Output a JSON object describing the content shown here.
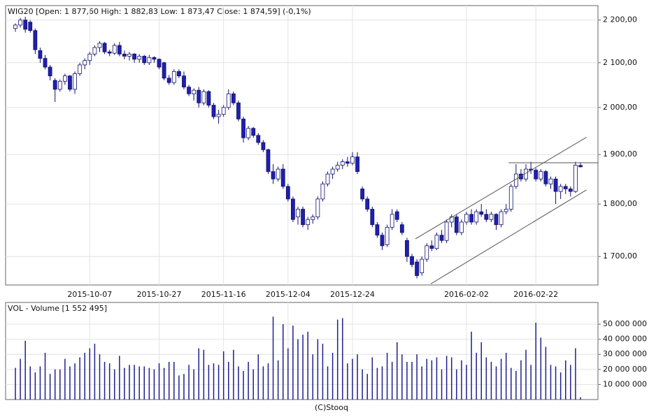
{
  "chart_data": [
    {
      "type": "candlestick",
      "title": "WIG20 [Open: 1 877,60  High: 1 882,83  Low: 1 873,47  Close: 1 874,59] (-0,1%)",
      "categories": [
        null,
        null,
        null,
        null,
        null,
        null,
        null,
        null,
        null,
        null,
        null,
        null,
        null,
        null,
        null,
        "2015-10-07",
        null,
        null,
        null,
        null,
        null,
        null,
        null,
        null,
        null,
        null,
        null,
        null,
        null,
        "2015-10-27",
        null,
        null,
        null,
        null,
        null,
        null,
        null,
        null,
        null,
        null,
        null,
        null,
        "2015-11-16",
        null,
        null,
        null,
        null,
        null,
        null,
        null,
        null,
        null,
        null,
        null,
        null,
        "2015-12-04",
        null,
        null,
        null,
        null,
        null,
        null,
        null,
        null,
        null,
        null,
        null,
        null,
        "2015-12-24",
        null,
        null,
        null,
        null,
        null,
        null,
        null,
        null,
        null,
        null,
        null,
        null,
        null,
        null,
        null,
        null,
        null,
        null,
        null,
        null,
        null,
        null,
        "2016-02-02",
        null,
        null,
        null,
        null,
        null,
        null,
        null,
        null,
        null,
        null,
        null,
        null,
        null,
        "2016-02-22",
        null,
        null,
        null,
        null,
        null,
        null,
        null,
        null,
        null
      ],
      "open": [
        2180,
        2188,
        2200,
        2195,
        2175,
        2128,
        2110,
        2090,
        2060,
        2040,
        2058,
        2070,
        2040,
        2075,
        2095,
        2105,
        2120,
        2135,
        2145,
        2125,
        2122,
        2140,
        2120,
        2115,
        2120,
        2108,
        2115,
        2100,
        2112,
        2108,
        2100,
        2065,
        2055,
        2080,
        2070,
        2045,
        2030,
        2038,
        2010,
        2035,
        2005,
        1980,
        1985,
        2000,
        2030,
        2010,
        1975,
        1935,
        1955,
        1940,
        1925,
        1910,
        1865,
        1850,
        1870,
        1835,
        1810,
        1775,
        1790,
        1760,
        1770,
        1775,
        1810,
        1840,
        1860,
        1870,
        1878,
        1885,
        1882,
        1895,
        1830,
        1810,
        1790,
        1760,
        1740,
        1722,
        1755,
        1785,
        1760,
        1730,
        1700,
        1690,
        1670,
        1695,
        1720,
        1715,
        1740,
        1730,
        1765,
        1775,
        1745,
        1765,
        1780,
        1765,
        1785,
        1780,
        1770,
        1780,
        1760,
        1785,
        1790,
        1835,
        1860,
        1850,
        1870,
        1868,
        1850,
        1865,
        1840,
        1850,
        1825,
        1835,
        1830,
        1825,
        1877.6
      ],
      "high": [
        2192,
        2205,
        2208,
        2200,
        2180,
        2135,
        2118,
        2095,
        2065,
        2062,
        2075,
        2072,
        2080,
        2100,
        2110,
        2125,
        2140,
        2150,
        2148,
        2130,
        2145,
        2148,
        2128,
        2125,
        2122,
        2120,
        2118,
        2118,
        2115,
        2110,
        2102,
        2072,
        2085,
        2085,
        2080,
        2050,
        2042,
        2045,
        2040,
        2038,
        2010,
        1995,
        2005,
        2040,
        2035,
        2015,
        1980,
        1960,
        1958,
        1945,
        1930,
        1912,
        1880,
        1875,
        1880,
        1840,
        1815,
        1795,
        1795,
        1775,
        1780,
        1815,
        1845,
        1865,
        1875,
        1885,
        1890,
        1895,
        1905,
        1905,
        1835,
        1815,
        1795,
        1765,
        1745,
        1760,
        1790,
        1790,
        1765,
        1735,
        1705,
        1695,
        1700,
        1725,
        1730,
        1745,
        1750,
        1770,
        1780,
        1780,
        1770,
        1785,
        1790,
        1790,
        1800,
        1790,
        1785,
        1782,
        1790,
        1800,
        1840,
        1880,
        1870,
        1880,
        1885,
        1872,
        1870,
        1868,
        1855,
        1855,
        1840,
        1840,
        1835,
        1885,
        1882.83
      ],
      "low": [
        2172,
        2182,
        2170,
        2170,
        2120,
        2100,
        2085,
        2060,
        2012,
        2035,
        2050,
        2035,
        2030,
        2070,
        2085,
        2095,
        2115,
        2125,
        2120,
        2115,
        2118,
        2115,
        2108,
        2105,
        2100,
        2100,
        2095,
        2095,
        2100,
        2085,
        2060,
        2050,
        2050,
        2065,
        2040,
        2025,
        2015,
        2000,
        2005,
        2000,
        1975,
        1965,
        1980,
        1995,
        2005,
        1970,
        1925,
        1930,
        1935,
        1920,
        1905,
        1860,
        1840,
        1845,
        1830,
        1805,
        1765,
        1760,
        1755,
        1750,
        1762,
        1770,
        1805,
        1835,
        1850,
        1865,
        1870,
        1875,
        1878,
        1860,
        1805,
        1785,
        1755,
        1735,
        1712,
        1718,
        1750,
        1765,
        1740,
        1690,
        1680,
        1660,
        1665,
        1690,
        1710,
        1712,
        1725,
        1725,
        1755,
        1740,
        1740,
        1760,
        1760,
        1760,
        1775,
        1765,
        1765,
        1750,
        1755,
        1780,
        1785,
        1830,
        1845,
        1845,
        1860,
        1845,
        1845,
        1835,
        1830,
        1800,
        1810,
        1820,
        1815,
        1822,
        1873.47
      ],
      "close": [
        2188,
        2200,
        2178,
        2175,
        2130,
        2110,
        2090,
        2070,
        2040,
        2058,
        2070,
        2040,
        2075,
        2095,
        2105,
        2120,
        2135,
        2145,
        2125,
        2122,
        2140,
        2120,
        2115,
        2120,
        2108,
        2115,
        2100,
        2112,
        2108,
        2090,
        2065,
        2055,
        2080,
        2070,
        2045,
        2030,
        2038,
        2010,
        2035,
        2005,
        1980,
        1985,
        2000,
        2030,
        2010,
        1975,
        1935,
        1955,
        1940,
        1925,
        1910,
        1865,
        1850,
        1870,
        1835,
        1810,
        1770,
        1790,
        1760,
        1770,
        1775,
        1810,
        1840,
        1860,
        1870,
        1878,
        1885,
        1882,
        1895,
        1865,
        1810,
        1790,
        1760,
        1740,
        1720,
        1755,
        1780,
        1770,
        1745,
        1700,
        1685,
        1665,
        1695,
        1720,
        1715,
        1740,
        1730,
        1765,
        1775,
        1745,
        1765,
        1780,
        1765,
        1785,
        1780,
        1770,
        1780,
        1760,
        1785,
        1790,
        1835,
        1860,
        1850,
        1870,
        1868,
        1850,
        1865,
        1840,
        1850,
        1825,
        1835,
        1830,
        1825,
        1878,
        1874.59
      ],
      "up_color": "#ffffff",
      "down_color": "#1f1fb0",
      "edge_color": "#10106a",
      "log_scale": true,
      "ylim": [
        1648,
        2235
      ],
      "yticks": [
        {
          "value": 1700,
          "label": "1 700,00"
        },
        {
          "value": 1800,
          "label": "1 800,00"
        },
        {
          "value": 1900,
          "label": "1 900,00"
        },
        {
          "value": 2000,
          "label": "2 000,00"
        },
        {
          "value": 2100,
          "label": "2 100,00"
        },
        {
          "value": 2200,
          "label": "2 200,00"
        }
      ],
      "grid": true,
      "lines": [
        {
          "x": [
            80.7,
            115.2
          ],
          "y": [
            1733,
            1936
          ]
        },
        {
          "x": [
            83.8,
            115.2
          ],
          "y": [
            1650,
            1828
          ]
        },
        {
          "x": [
            99.5,
            117.5
          ],
          "y": [
            1883,
            1883
          ]
        }
      ],
      "line_color": "#555555"
    },
    {
      "type": "bar",
      "title": "VOL - Volume [1 552 495]",
      "values": [
        21000000,
        27000000,
        39000000,
        22000000,
        18000000,
        22000000,
        31000000,
        17000000,
        20000000,
        20000000,
        27000000,
        22000000,
        24000000,
        28000000,
        31000000,
        34000000,
        37000000,
        30000000,
        25000000,
        24000000,
        20000000,
        29000000,
        21000000,
        23000000,
        23000000,
        22000000,
        22000000,
        21000000,
        20000000,
        24000000,
        21000000,
        25000000,
        25000000,
        16000000,
        17000000,
        23000000,
        20000000,
        34000000,
        33000000,
        23000000,
        24000000,
        23000000,
        32000000,
        25000000,
        33000000,
        22000000,
        19000000,
        25000000,
        20000000,
        30000000,
        22000000,
        24000000,
        55000000,
        26000000,
        50000000,
        34000000,
        49000000,
        40000000,
        43000000,
        45000000,
        30000000,
        40000000,
        37000000,
        22000000,
        31000000,
        53000000,
        54000000,
        24000000,
        27000000,
        30000000,
        20000000,
        17000000,
        28000000,
        21000000,
        22000000,
        31000000,
        25000000,
        38000000,
        30000000,
        25000000,
        25000000,
        30000000,
        22000000,
        27000000,
        26000000,
        28000000,
        20000000,
        29000000,
        28000000,
        20000000,
        26000000,
        23000000,
        45000000,
        31000000,
        38000000,
        28000000,
        25000000,
        22000000,
        27000000,
        31000000,
        21000000,
        19000000,
        26000000,
        33000000,
        23000000,
        51000000,
        41000000,
        35000000,
        23000000,
        22000000,
        18000000,
        26000000,
        23000000,
        34000000,
        1552495
      ],
      "color": "#1f1f8f",
      "ylim": [
        0,
        64400000
      ],
      "yticks": [
        {
          "value": 10000000,
          "label": "10 000 000"
        },
        {
          "value": 20000000,
          "label": "20 000 000"
        },
        {
          "value": 30000000,
          "label": "30 000 000"
        },
        {
          "value": 40000000,
          "label": "40 000 000"
        },
        {
          "value": 50000000,
          "label": "50 000 000"
        }
      ],
      "grid": true
    }
  ],
  "credit": "(C)Stooq"
}
